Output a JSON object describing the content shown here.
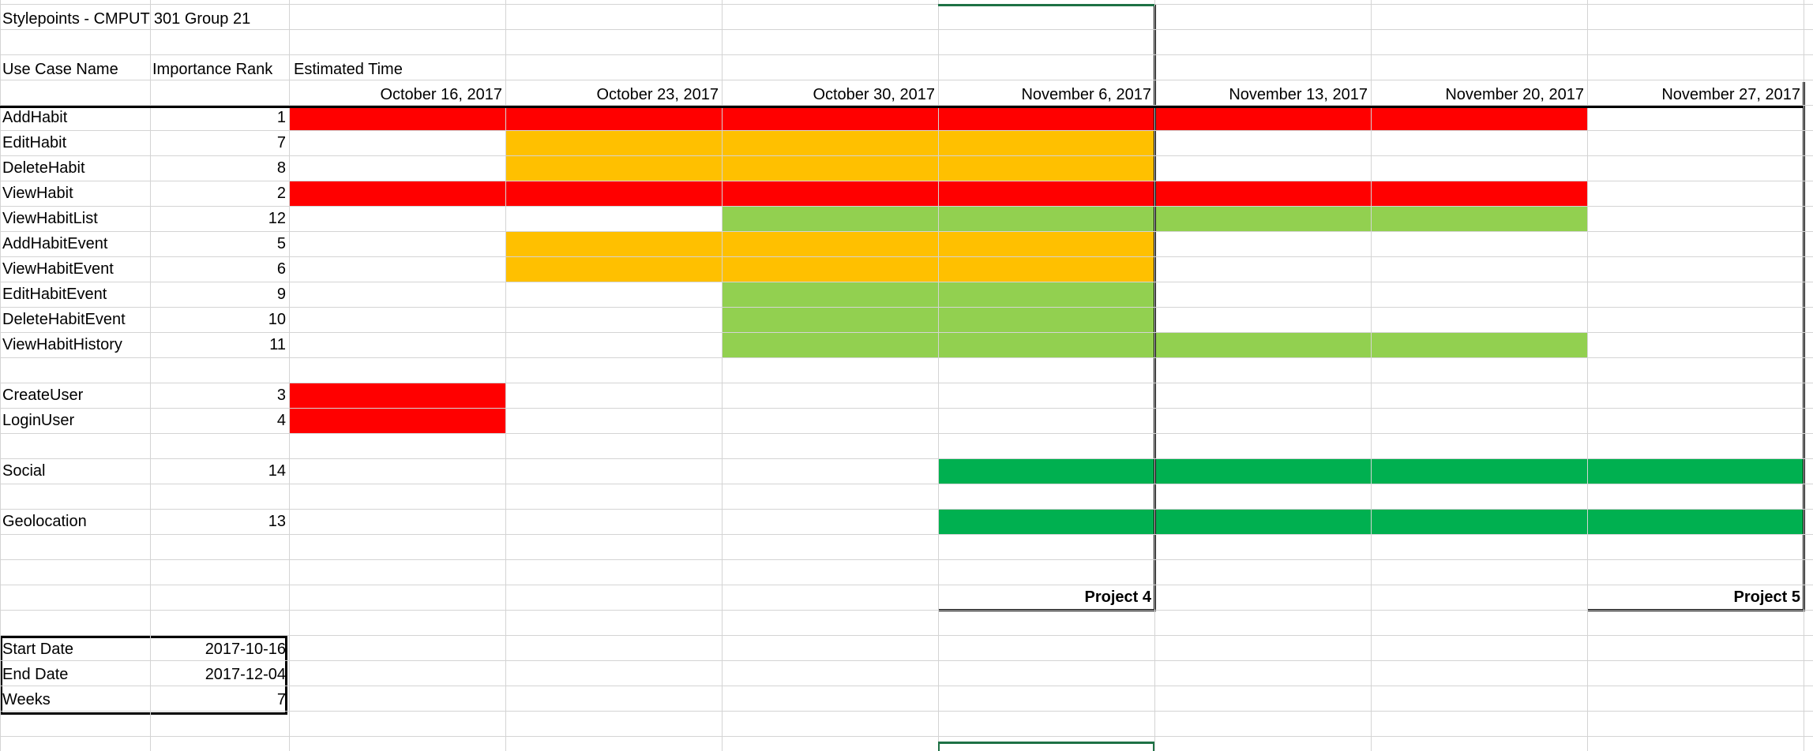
{
  "title": "Stylepoints - CMPUT 301 Group 21",
  "headers": {
    "use_case": "Use Case Name",
    "rank": "Importance Rank",
    "estimated": "Estimated Time"
  },
  "weeks": [
    "October 16, 2017",
    "October 23, 2017",
    "October 30, 2017",
    "November 6, 2017",
    "November 13, 2017",
    "November 20, 2017",
    "November 27, 2017"
  ],
  "colors": {
    "red": "#ff0000",
    "orange": "#ffc000",
    "light_green": "#92d050",
    "green": "#00b050",
    "grid": "#d4d4d4",
    "selection": "#1e7145"
  },
  "tasks": [
    {
      "name": "AddHabit",
      "rank": "1",
      "color": "red",
      "start_week": 0,
      "end_week": 6
    },
    {
      "name": "EditHabit",
      "rank": "7",
      "color": "orange",
      "start_week": 1,
      "end_week": 4
    },
    {
      "name": "DeleteHabit",
      "rank": "8",
      "color": "orange",
      "start_week": 1,
      "end_week": 4
    },
    {
      "name": "ViewHabit",
      "rank": "2",
      "color": "red",
      "start_week": 0,
      "end_week": 6
    },
    {
      "name": "ViewHabitList",
      "rank": "12",
      "color": "light_green",
      "start_week": 2,
      "end_week": 6
    },
    {
      "name": "AddHabitEvent",
      "rank": "5",
      "color": "orange",
      "start_week": 1,
      "end_week": 4
    },
    {
      "name": "ViewHabitEvent",
      "rank": "6",
      "color": "orange",
      "start_week": 1,
      "end_week": 4
    },
    {
      "name": "EditHabitEvent",
      "rank": "9",
      "color": "light_green",
      "start_week": 2,
      "end_week": 4
    },
    {
      "name": "DeleteHabitEvent",
      "rank": "10",
      "color": "light_green",
      "start_week": 2,
      "end_week": 4
    },
    {
      "name": "ViewHabitHistory",
      "rank": "11",
      "color": "light_green",
      "start_week": 2,
      "end_week": 6
    },
    {
      "name": "",
      "rank": "",
      "color": "",
      "start_week": 0,
      "end_week": 0
    },
    {
      "name": "CreateUser",
      "rank": "3",
      "color": "red",
      "start_week": 0,
      "end_week": 1
    },
    {
      "name": "LoginUser",
      "rank": "4",
      "color": "red",
      "start_week": 0,
      "end_week": 1
    },
    {
      "name": "",
      "rank": "",
      "color": "",
      "start_week": 0,
      "end_week": 0
    },
    {
      "name": "Social",
      "rank": "14",
      "color": "green",
      "start_week": 3,
      "end_week": 7
    },
    {
      "name": "",
      "rank": "",
      "color": "",
      "start_week": 0,
      "end_week": 0
    },
    {
      "name": "Geolocation",
      "rank": "13",
      "color": "green",
      "start_week": 3,
      "end_week": 7
    }
  ],
  "milestones": [
    {
      "label": "Project 4",
      "week": 3
    },
    {
      "label": "Project 5",
      "week": 6
    }
  ],
  "summary": [
    {
      "label": "Start Date",
      "value": "2017-10-16"
    },
    {
      "label": "End Date",
      "value": "2017-12-04"
    },
    {
      "label": "Weeks",
      "value": "7"
    }
  ]
}
